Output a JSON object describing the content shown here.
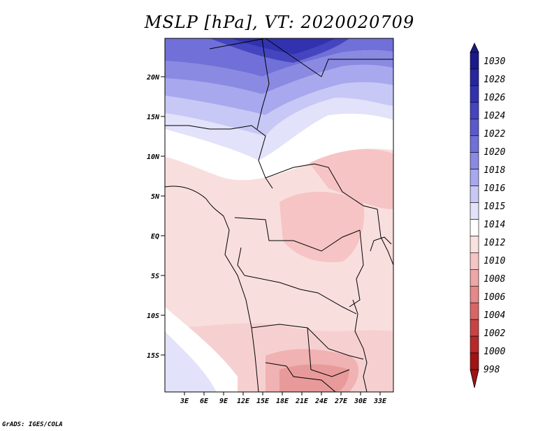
{
  "title": "MSLP [hPa], VT: 2020020709",
  "credit": "GrADS: IGES/COLA",
  "map": {
    "region": "Central/Southern Africa",
    "lon_range": [
      0,
      35
    ],
    "lat_range": [
      -20,
      24.5
    ],
    "lat_ticks": [
      "20N",
      "15N",
      "10N",
      "5N",
      "EQ",
      "5S",
      "10S",
      "15S"
    ],
    "lon_ticks": [
      "3E",
      "6E",
      "9E",
      "12E",
      "15E",
      "18E",
      "21E",
      "24E",
      "27E",
      "30E",
      "33E"
    ]
  },
  "colorbar": {
    "labels": [
      "1030",
      "1028",
      "1026",
      "1024",
      "1022",
      "1020",
      "1018",
      "1016",
      "1015",
      "1014",
      "1012",
      "1010",
      "1008",
      "1006",
      "1004",
      "1002",
      "1000",
      "998"
    ],
    "colors": [
      "#1a1a8c",
      "#26269f",
      "#3232b0",
      "#4545c0",
      "#5a5acc",
      "#7070d8",
      "#8a8ae2",
      "#a8a8ee",
      "#c8c8f6",
      "#e2e2fa",
      "#ffffff",
      "#fbe0e0",
      "#f6c4c4",
      "#eea6a6",
      "#e48888",
      "#d86666",
      "#c84444",
      "#b82828",
      "#a01414"
    ]
  }
}
